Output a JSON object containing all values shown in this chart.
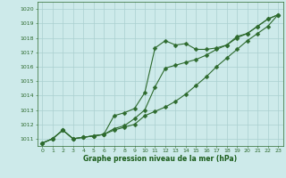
{
  "x": [
    0,
    1,
    2,
    3,
    4,
    5,
    6,
    7,
    8,
    9,
    10,
    11,
    12,
    13,
    14,
    15,
    16,
    17,
    18,
    19,
    20,
    21,
    22,
    23
  ],
  "line1": [
    1010.7,
    1011.0,
    1011.6,
    1011.0,
    1011.1,
    1011.2,
    1011.3,
    1012.6,
    1012.8,
    1013.1,
    1014.2,
    1017.3,
    1017.8,
    1017.5,
    1017.6,
    1017.2,
    1017.2,
    1017.3,
    1017.5,
    1018.1,
    1018.3,
    1018.8,
    1019.3,
    1019.6
  ],
  "line2": [
    1010.7,
    1011.0,
    1011.6,
    1011.0,
    1011.1,
    1011.2,
    1011.3,
    1011.7,
    1011.9,
    1012.4,
    1013.0,
    1014.6,
    1015.9,
    1016.1,
    1016.3,
    1016.5,
    1016.8,
    1017.2,
    1017.5,
    1018.0,
    1018.3,
    1018.8,
    1019.3,
    1019.6
  ],
  "line3": [
    1010.7,
    1011.0,
    1011.6,
    1011.0,
    1011.1,
    1011.2,
    1011.3,
    1011.6,
    1011.8,
    1012.0,
    1012.6,
    1012.9,
    1013.2,
    1013.6,
    1014.1,
    1014.7,
    1015.3,
    1016.0,
    1016.6,
    1017.2,
    1017.8,
    1018.3,
    1018.8,
    1019.6
  ],
  "line_color": "#2d6a2d",
  "bg_color": "#cdeaea",
  "grid_color": "#aacfcf",
  "xlabel": "Graphe pression niveau de la mer (hPa)",
  "xlabel_color": "#1a5c1a",
  "axis_color": "#2d6a2d",
  "ylim": [
    1010.5,
    1020.5
  ],
  "xlim": [
    -0.5,
    23.5
  ],
  "yticks": [
    1011,
    1012,
    1013,
    1014,
    1015,
    1016,
    1017,
    1018,
    1019,
    1020
  ],
  "xticks": [
    0,
    1,
    2,
    3,
    4,
    5,
    6,
    7,
    8,
    9,
    10,
    11,
    12,
    13,
    14,
    15,
    16,
    17,
    18,
    19,
    20,
    21,
    22,
    23
  ],
  "markersize": 2.5,
  "linewidth": 0.8
}
